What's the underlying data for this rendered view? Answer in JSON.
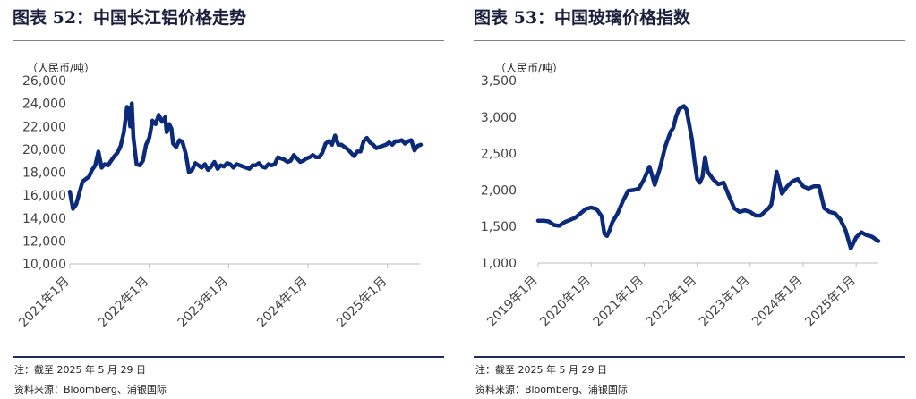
{
  "left": {
    "title": "图表  52：中国长江铝价格走势",
    "note": "注：截至 2025 年 5 月 29 日",
    "source": "资料来源：Bloomberg、浦银国际"
  },
  "right": {
    "title": "图表  53：中国玻璃价格指数",
    "note": "注：截至 2025 年 5 月 29 日",
    "source": "资料来源：Bloomberg、浦银国际"
  },
  "chart_data": [
    {
      "type": "line",
      "title": "中国长江铝价格走势",
      "unit_label": "（人民币/吨）",
      "ylim": [
        10000,
        26000
      ],
      "yticks": [
        10000,
        12000,
        14000,
        16000,
        18000,
        20000,
        22000,
        24000,
        26000
      ],
      "ytick_labels": [
        "10,000",
        "12,000",
        "14,000",
        "16,000",
        "18,000",
        "20,000",
        "22,000",
        "24,000",
        "26,000"
      ],
      "xlim": [
        2021.0,
        2025.42
      ],
      "xticks": [
        2021,
        2022,
        2023,
        2024,
        2025
      ],
      "xtick_labels": [
        "2021年1月",
        "2022年1月",
        "2023年1月",
        "2024年1月",
        "2025年1月"
      ],
      "color": "#0b2a7a",
      "series": [
        {
          "x": [
            2021.0,
            2021.04,
            2021.08,
            2021.12,
            2021.16,
            2021.2,
            2021.24,
            2021.28,
            2021.32,
            2021.36,
            2021.4,
            2021.44,
            2021.48,
            2021.52,
            2021.56,
            2021.6,
            2021.64,
            2021.68,
            2021.72,
            2021.74,
            2021.76,
            2021.78,
            2021.8,
            2021.84,
            2021.88,
            2021.92,
            2021.96,
            2022.0,
            2022.04,
            2022.08,
            2022.12,
            2022.16,
            2022.2,
            2022.22,
            2022.25,
            2022.28,
            2022.3,
            2022.34,
            2022.38,
            2022.42,
            2022.46,
            2022.5,
            2022.54,
            2022.58,
            2022.62,
            2022.66,
            2022.7,
            2022.74,
            2022.78,
            2022.82,
            2022.86,
            2022.9,
            2022.94,
            2022.98,
            2023.02,
            2023.06,
            2023.1,
            2023.14,
            2023.18,
            2023.22,
            2023.26,
            2023.3,
            2023.34,
            2023.38,
            2023.42,
            2023.46,
            2023.5,
            2023.54,
            2023.58,
            2023.62,
            2023.66,
            2023.7,
            2023.74,
            2023.78,
            2023.82,
            2023.86,
            2023.9,
            2023.94,
            2023.98,
            2024.02,
            2024.06,
            2024.1,
            2024.14,
            2024.18,
            2024.22,
            2024.26,
            2024.3,
            2024.34,
            2024.38,
            2024.42,
            2024.46,
            2024.5,
            2024.54,
            2024.58,
            2024.62,
            2024.66,
            2024.7,
            2024.74,
            2024.78,
            2024.82,
            2024.86,
            2024.9,
            2024.94,
            2024.98,
            2025.02,
            2025.06,
            2025.1,
            2025.14,
            2025.18,
            2025.22,
            2025.26,
            2025.3,
            2025.34,
            2025.38,
            2025.42
          ],
          "y": [
            16300,
            14800,
            15200,
            16200,
            17200,
            17400,
            17600,
            18200,
            18600,
            19800,
            18400,
            18700,
            18600,
            19000,
            19400,
            19700,
            20300,
            21500,
            23700,
            23500,
            22000,
            24000,
            21000,
            18700,
            18600,
            19000,
            20400,
            21000,
            22500,
            22200,
            23000,
            22400,
            22800,
            21500,
            22200,
            21800,
            20500,
            20200,
            20800,
            20600,
            19600,
            18000,
            18200,
            18800,
            18600,
            18400,
            18700,
            18200,
            18500,
            18900,
            18300,
            18600,
            18500,
            18800,
            18700,
            18400,
            18700,
            18600,
            18500,
            18400,
            18300,
            18600,
            18600,
            18800,
            18500,
            18400,
            18700,
            18600,
            18700,
            19300,
            19200,
            19100,
            18900,
            19000,
            19500,
            19200,
            18900,
            19000,
            19200,
            19300,
            19500,
            19300,
            19300,
            19700,
            20500,
            20700,
            20400,
            21200,
            20400,
            20400,
            20200,
            20000,
            19700,
            19400,
            19800,
            19800,
            20700,
            21000,
            20600,
            20400,
            20100,
            20200,
            20300,
            20400,
            20600,
            20400,
            20700,
            20700,
            20800,
            20500,
            20700,
            20800,
            19900,
            20300,
            20400
          ]
        }
      ]
    },
    {
      "type": "line",
      "title": "中国玻璃价格指数",
      "unit_label": "（人民币/吨）",
      "ylim": [
        1000,
        3500
      ],
      "yticks": [
        1000,
        1500,
        2000,
        2500,
        3000,
        3500
      ],
      "ytick_labels": [
        "1,000",
        "1,500",
        "2,000",
        "2,500",
        "3,000",
        "3,500"
      ],
      "xlim": [
        2019.0,
        2025.42
      ],
      "xticks": [
        2019,
        2020,
        2021,
        2022,
        2023,
        2024,
        2025
      ],
      "xtick_labels": [
        "2019年1月",
        "2020年1月",
        "2021年1月",
        "2022年1月",
        "2023年1月",
        "2024年1月",
        "2025年1月"
      ],
      "color": "#0b2a7a",
      "series": [
        {
          "x": [
            2019.0,
            2019.1,
            2019.2,
            2019.3,
            2019.4,
            2019.5,
            2019.6,
            2019.7,
            2019.8,
            2019.9,
            2020.0,
            2020.1,
            2020.2,
            2020.25,
            2020.3,
            2020.35,
            2020.4,
            2020.5,
            2020.6,
            2020.7,
            2020.8,
            2020.9,
            2021.0,
            2021.1,
            2021.15,
            2021.2,
            2021.3,
            2021.4,
            2021.5,
            2021.55,
            2021.6,
            2021.65,
            2021.7,
            2021.75,
            2021.8,
            2021.85,
            2021.9,
            2021.95,
            2022.0,
            2022.05,
            2022.1,
            2022.15,
            2022.2,
            2022.3,
            2022.4,
            2022.5,
            2022.6,
            2022.7,
            2022.8,
            2022.9,
            2023.0,
            2023.1,
            2023.2,
            2023.3,
            2023.35,
            2023.4,
            2023.5,
            2023.6,
            2023.7,
            2023.8,
            2023.9,
            2024.0,
            2024.1,
            2024.2,
            2024.3,
            2024.4,
            2024.5,
            2024.6,
            2024.7,
            2024.8,
            2024.9,
            2025.0,
            2025.1,
            2025.2,
            2025.3,
            2025.42
          ],
          "y": [
            1580,
            1580,
            1570,
            1520,
            1510,
            1560,
            1590,
            1620,
            1680,
            1740,
            1760,
            1740,
            1640,
            1400,
            1370,
            1450,
            1560,
            1680,
            1850,
            1990,
            2000,
            2020,
            2150,
            2320,
            2200,
            2070,
            2300,
            2600,
            2800,
            2850,
            3000,
            3100,
            3130,
            3150,
            3100,
            2900,
            2700,
            2400,
            2150,
            2100,
            2180,
            2450,
            2250,
            2150,
            2080,
            2100,
            1920,
            1750,
            1700,
            1720,
            1700,
            1650,
            1650,
            1720,
            1750,
            1800,
            2250,
            1950,
            2050,
            2120,
            2150,
            2050,
            2020,
            2050,
            2050,
            1750,
            1700,
            1680,
            1600,
            1450,
            1200,
            1350,
            1420,
            1380,
            1360,
            1300
          ]
        }
      ]
    }
  ]
}
